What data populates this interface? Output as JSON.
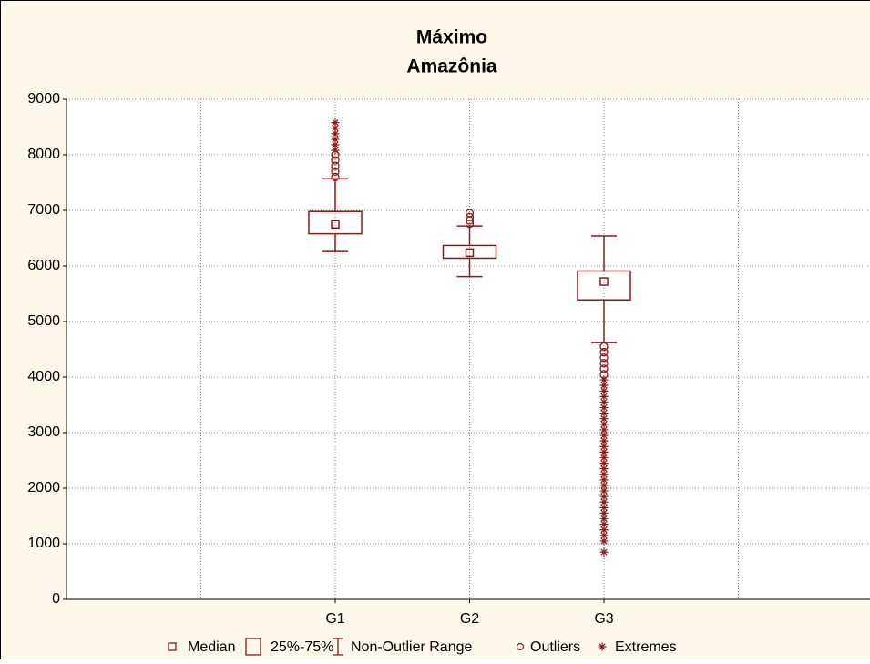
{
  "chart_data": {
    "type": "box",
    "title": "Máximo",
    "subtitle": "Amazônia",
    "categories": [
      "G1",
      "G2",
      "G3"
    ],
    "median": [
      6750,
      6240,
      5720
    ],
    "q1": [
      6580,
      6140,
      5390
    ],
    "q3": [
      6980,
      6370,
      5910
    ],
    "whisker_low": [
      6260,
      5810,
      4620
    ],
    "whisker_high": [
      7570,
      6720,
      6540
    ],
    "outliers": [
      [
        7600,
        7700,
        7800,
        7900,
        8000
      ],
      [
        6760,
        6820,
        6880,
        6950
      ],
      [
        4050,
        4150,
        4250,
        4350,
        4450,
        4550
      ]
    ],
    "extremes": [
      [
        8080,
        8180,
        8280,
        8380,
        8480,
        8580
      ],
      [],
      [
        850,
        1050,
        1150,
        1250,
        1350,
        1450,
        1550,
        1650,
        1750,
        1850,
        1950,
        2050,
        2150,
        2250,
        2350,
        2450,
        2550,
        2650,
        2750,
        2850,
        2950,
        3050,
        3150,
        3250,
        3350,
        3450,
        3550,
        3650,
        3750,
        3850,
        3950
      ]
    ],
    "color": "#8b1a1a",
    "ylim": [
      0,
      9000
    ],
    "yticks": [
      0,
      1000,
      2000,
      3000,
      4000,
      5000,
      6000,
      7000,
      8000,
      9000
    ],
    "grid": true,
    "legend": [
      "Median",
      "25%-75%",
      "Non-Outlier Range",
      "Outliers",
      "Extremes"
    ]
  }
}
